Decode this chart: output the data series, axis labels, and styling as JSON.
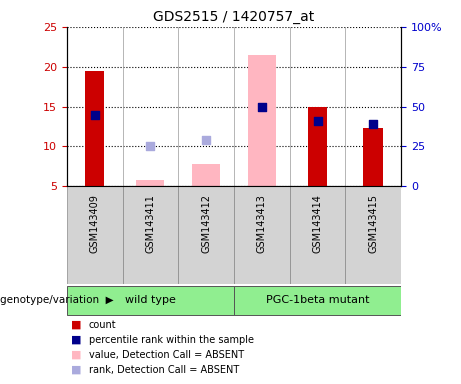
{
  "title": "GDS2515 / 1420757_at",
  "samples": [
    "GSM143409",
    "GSM143411",
    "GSM143412",
    "GSM143413",
    "GSM143414",
    "GSM143415"
  ],
  "red_bars": [
    19.5,
    null,
    null,
    null,
    15.0,
    12.3
  ],
  "pink_bars": [
    null,
    5.8,
    7.8,
    21.5,
    null,
    null
  ],
  "blue_dots": [
    14.0,
    null,
    null,
    15.0,
    13.2,
    12.8
  ],
  "lightblue_dots": [
    null,
    10.0,
    10.8,
    null,
    null,
    null
  ],
  "ylim_left": [
    5,
    25
  ],
  "ylim_right": [
    0,
    100
  ],
  "yticks_left": [
    5,
    10,
    15,
    20,
    25
  ],
  "yticks_right": [
    0,
    25,
    50,
    75,
    100
  ],
  "yticklabels_right": [
    "0",
    "25",
    "50",
    "75",
    "100%"
  ],
  "group_labels": [
    "wild type",
    "PGC-1beta mutant"
  ],
  "group_ranges": [
    [
      0,
      2
    ],
    [
      3,
      5
    ]
  ],
  "group_color": "#90EE90",
  "group_label_text": "genotype/variation",
  "legend_colors": [
    "#CC0000",
    "#00008B",
    "#FFB6C1",
    "#AAAADD"
  ],
  "legend_labels": [
    "count",
    "percentile rank within the sample",
    "value, Detection Call = ABSENT",
    "rank, Detection Call = ABSENT"
  ],
  "bar_width": 0.35,
  "pink_bar_width": 0.5,
  "dot_size": 30,
  "tick_color_left": "#CC0000",
  "tick_color_right": "#0000CC"
}
